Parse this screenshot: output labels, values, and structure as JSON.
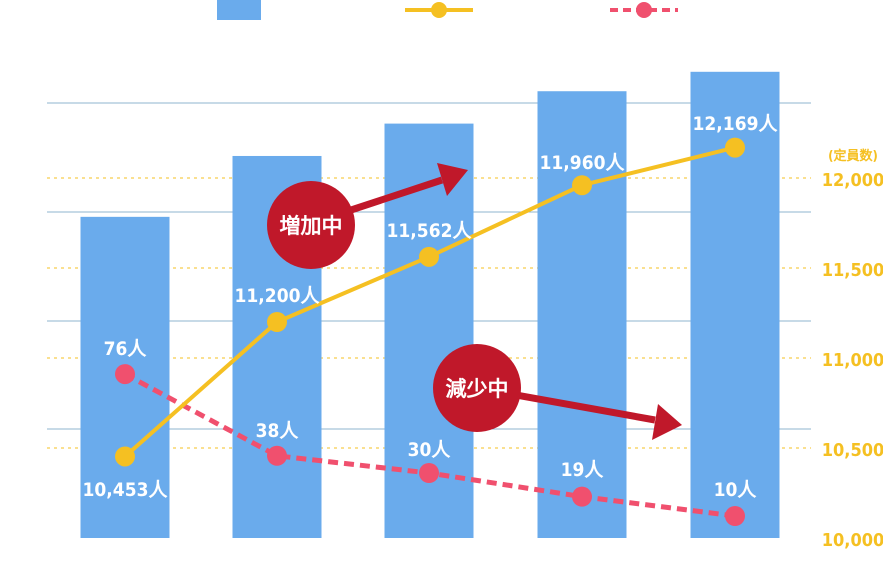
{
  "chart_data": {
    "type": "bar",
    "categories": [
      "",
      "",
      "",
      "",
      ""
    ],
    "series": [
      {
        "type": "bar",
        "values": [
          12480,
          12950,
          13200,
          13450,
          13600
        ],
        "color": "#6aabec"
      },
      {
        "type": "line",
        "axis": "right",
        "values": [
          10453,
          11200,
          11562,
          11960,
          12169
        ],
        "labels": [
          "10,453人",
          "11,200人",
          "11,562人",
          "11,960人",
          "12,169人"
        ],
        "color": "#f5c022"
      },
      {
        "type": "line",
        "style": "dashed",
        "values": [
          76,
          38,
          30,
          19,
          10
        ],
        "labels": [
          "76人",
          "38人",
          "30人",
          "19人",
          "10人"
        ],
        "color": "#f0506e"
      }
    ],
    "right_axis": {
      "unit": "(定員数)",
      "ticks": [
        12000,
        11500,
        11000,
        10500,
        10000
      ],
      "tick_labels": [
        "12,000",
        "11,500",
        "11,000",
        "10,500",
        "10,000"
      ],
      "range": [
        10000,
        12200
      ],
      "color": "#f5c022"
    },
    "legend": {
      "placement": "top"
    },
    "annotations": [
      {
        "text": "増加中",
        "color": "#c0182a"
      },
      {
        "text": "減少中",
        "color": "#c0182a"
      }
    ]
  }
}
